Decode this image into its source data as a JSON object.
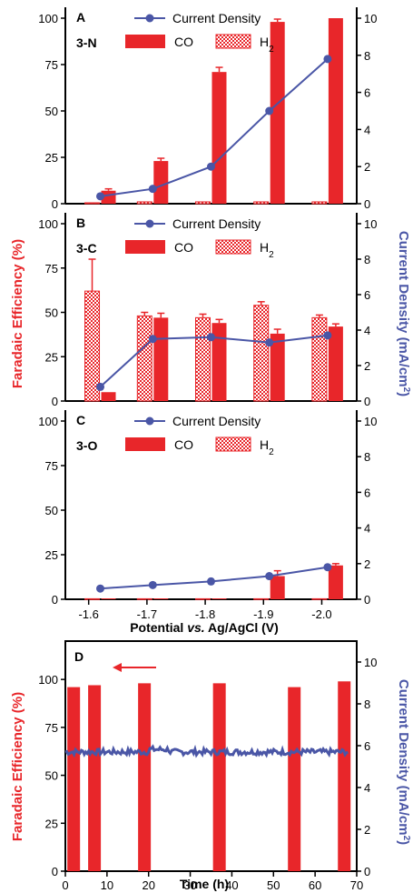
{
  "colors": {
    "fe": "#e8262a",
    "cd": "#4a56a6",
    "axis": "#000000"
  },
  "y_left_label": "Faradaic Efficiency (%)",
  "y_right_label_main": "Current Density (mA/cm",
  "y_right_label_sup": "2",
  "y_right_label_end": ")",
  "legend": {
    "cd": "Current Density",
    "co": "CO",
    "h2_main": "H",
    "h2_sub": "2"
  },
  "x_axis_label": {
    "pre": "Potential ",
    "italic": "vs.",
    "post": " Ag/AgCl (V)"
  },
  "x_ticks": [
    "-1.6",
    "-1.7",
    "-1.8",
    "-1.9",
    "-2.0"
  ],
  "time_axis_label": "Time (h)",
  "panels": [
    {
      "letter": "A",
      "sample": "3-N",
      "chart_data": {
        "type": "bar",
        "x": [
          -1.62,
          -1.71,
          -1.81,
          -1.91,
          -2.01
        ],
        "series": [
          {
            "name": "CO",
            "values": [
              7,
              23,
              71,
              98,
              100
            ],
            "errors": [
              1,
              1.5,
              2.5,
              1.5,
              0
            ]
          },
          {
            "name": "H2",
            "values": [
              0.5,
              1.0,
              1.0,
              1.0,
              1.0
            ],
            "errors": [
              0,
              0,
              0,
              0,
              0
            ]
          },
          {
            "name": "Current Density",
            "values": [
              0.4,
              0.8,
              2.0,
              5.0,
              7.8
            ]
          }
        ],
        "ylim_left": [
          0,
          100
        ],
        "ylim_right": [
          0,
          10
        ]
      }
    },
    {
      "letter": "B",
      "sample": "3-C",
      "chart_data": {
        "type": "bar",
        "x": [
          -1.62,
          -1.71,
          -1.81,
          -1.91,
          -2.01
        ],
        "series": [
          {
            "name": "CO",
            "values": [
              5,
              47,
              44,
              38,
              42
            ],
            "errors": [
              0,
              2.5,
              2,
              2.5,
              1.5
            ]
          },
          {
            "name": "H2",
            "values": [
              62,
              48,
              47,
              54,
              47
            ],
            "errors": [
              18,
              2,
              2,
              2,
              1.5
            ]
          },
          {
            "name": "Current Density",
            "values": [
              0.8,
              3.5,
              3.6,
              3.3,
              3.7
            ]
          }
        ],
        "ylim_left": [
          0,
          100
        ],
        "ylim_right": [
          0,
          10
        ]
      }
    },
    {
      "letter": "C",
      "sample": "3-O",
      "chart_data": {
        "type": "bar",
        "x": [
          -1.62,
          -1.71,
          -1.81,
          -1.91,
          -2.01
        ],
        "series": [
          {
            "name": "CO",
            "values": [
              0.5,
              0.5,
              0.5,
              13,
              19
            ],
            "errors": [
              0,
              0,
              0,
              3,
              1
            ]
          },
          {
            "name": "H2",
            "values": [
              0.3,
              0.3,
              0.3,
              0.3,
              0.3
            ],
            "errors": [
              0,
              0,
              0,
              0,
              0
            ]
          },
          {
            "name": "Current Density",
            "values": [
              0.6,
              0.8,
              1.0,
              1.3,
              1.8
            ]
          }
        ],
        "ylim_left": [
          0,
          100
        ],
        "ylim_right": [
          0,
          10
        ]
      }
    },
    {
      "letter": "D",
      "chart_data": {
        "type": "bar",
        "bars_x": [
          2,
          7,
          19,
          37,
          55,
          67
        ],
        "bars_fe": [
          96,
          97,
          98,
          98,
          96,
          99
        ],
        "current_density_level": 5.7,
        "arrow_direction": "left",
        "xlim": [
          0,
          70
        ],
        "x_ticks": [
          "0",
          "10",
          "20",
          "30",
          "40",
          "50",
          "60",
          "70"
        ],
        "ylim_left": [
          0,
          120
        ],
        "y_ticks_left": [
          "0",
          "25",
          "50",
          "75",
          "100"
        ],
        "ylim_right": [
          0,
          11
        ],
        "y_ticks_right": [
          "0",
          "2",
          "4",
          "6",
          "8",
          "10"
        ]
      }
    }
  ],
  "abc_y_ticks_left": [
    "0",
    "25",
    "50",
    "75",
    "100"
  ],
  "abc_y_ticks_right": [
    "0",
    "2",
    "4",
    "6",
    "8",
    "10"
  ]
}
